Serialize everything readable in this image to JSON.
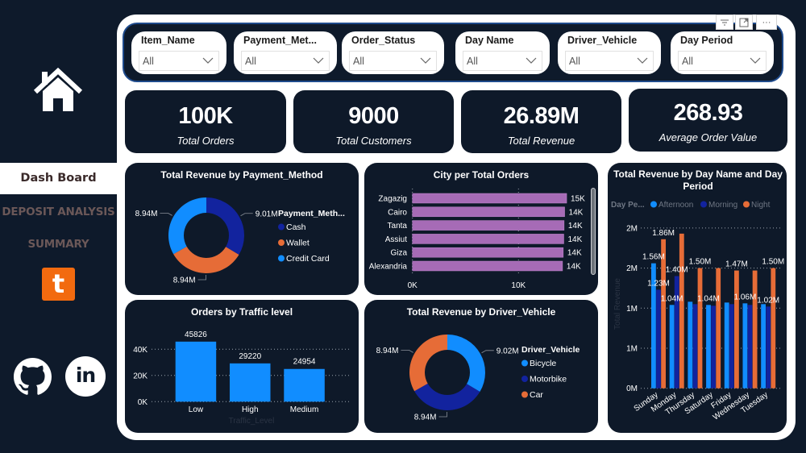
{
  "sidebar": {
    "nav": [
      {
        "label": "Dash Board",
        "active": true
      },
      {
        "label": "DEPOSIT ANALYSIS",
        "active": false
      },
      {
        "label": "SUMMARY",
        "active": false
      }
    ],
    "tumblr_glyph": "t",
    "linkedin_glyph": "in"
  },
  "visual_header": {
    "filter_glyph": "☰",
    "focus_glyph": "⤢",
    "more_glyph": "···"
  },
  "filters": [
    {
      "title": "Item_Name",
      "value": "All"
    },
    {
      "title": "Payment_Met...",
      "value": "All"
    },
    {
      "title": "Order_Status",
      "value": "All"
    },
    {
      "title": "Day Name",
      "value": "All"
    },
    {
      "title": "Driver_Vehicle",
      "value": "All"
    },
    {
      "title": "Day Period",
      "value": "All"
    }
  ],
  "kpis": [
    {
      "value": "100K",
      "label": "Total Orders"
    },
    {
      "value": "9000",
      "label": "Total Customers"
    },
    {
      "value": "26.89M",
      "label": "Total Revenue"
    },
    {
      "value": "268.93",
      "label": "Average Order Value"
    }
  ],
  "colors": {
    "background": "#0E1A2B",
    "panel": "#FFFFFF",
    "light_blue": "#118DFF",
    "dark_blue": "#12239E",
    "orange": "#E66C37",
    "purple": "#A66BB6",
    "tumblr": "#F26A0F"
  },
  "chart_data": [
    {
      "type": "pie",
      "variant": "donut",
      "title": "Total Revenue by Payment_Method",
      "legend_title": "Payment_Meth...",
      "legend_position": "right",
      "labels": [
        "Cash",
        "Wallet",
        "Credit Card"
      ],
      "values": [
        9.01,
        8.94,
        8.94
      ],
      "unit": "M",
      "data_labels": [
        "9.01M",
        "8.94M",
        "8.94M"
      ],
      "colors": [
        "#12239E",
        "#E66C37",
        "#118DFF"
      ]
    },
    {
      "type": "bar",
      "orientation": "horizontal",
      "title": "City per Total Orders",
      "categories": [
        "Zagazig",
        "Cairo",
        "Tanta",
        "Assiut",
        "Giza",
        "Alexandria"
      ],
      "values": [
        14540,
        14350,
        14300,
        14270,
        14220,
        14150
      ],
      "data_labels": [
        "15K",
        "14K",
        "14K",
        "14K",
        "14K",
        "14K"
      ],
      "xticks": [
        0,
        10000
      ],
      "xtick_labels": [
        "0K",
        "10K"
      ],
      "xlim": [
        0,
        15000
      ],
      "color": "#A66BB6",
      "grid": true,
      "scrollable": true
    },
    {
      "type": "bar",
      "variant": "grouped",
      "title": "Total Revenue by Day Name and Day Period",
      "xlabel": "",
      "ylabel": "Total Revenue",
      "legend_title": "Day Pe...",
      "legend_position": "top-left",
      "categories": [
        "Sunday",
        "Monday",
        "Thursday",
        "Saturday",
        "Friday",
        "Wednesday",
        "Tuesday"
      ],
      "series": [
        {
          "name": "Afternoon",
          "color": "#118DFF",
          "values": [
            1.56,
            1.04,
            1.08,
            1.04,
            1.07,
            1.06,
            1.05
          ],
          "labels": [
            "1.56M",
            "1.04M",
            null,
            "1.04M",
            null,
            "1.06M",
            null
          ]
        },
        {
          "name": "Morning",
          "color": "#12239E",
          "values": [
            1.23,
            1.4,
            1.05,
            1.03,
            1.05,
            1.04,
            1.02
          ],
          "labels": [
            "1.23M",
            "1.40M",
            null,
            null,
            null,
            null,
            "1.02M"
          ]
        },
        {
          "name": "Night",
          "color": "#E66C37",
          "values": [
            1.86,
            1.93,
            1.5,
            1.5,
            1.47,
            1.47,
            1.5
          ],
          "labels": [
            "1.86M",
            null,
            "1.50M",
            null,
            "1.47M",
            null,
            "1.50M"
          ]
        }
      ],
      "yticks": [
        0,
        0.5,
        1,
        1.5,
        2
      ],
      "ytick_labels": [
        "0M",
        "1M",
        "1M",
        "2M",
        "2M"
      ],
      "ylim": [
        0,
        2
      ],
      "unit": "M",
      "grid": true
    },
    {
      "type": "bar",
      "title": "Orders by Traffic level",
      "xlabel": "Traffic_Level",
      "ylabel": "",
      "categories": [
        "Low",
        "High",
        "Medium"
      ],
      "values": [
        45826,
        29220,
        24954
      ],
      "data_labels": [
        "45826",
        "29220",
        "24954"
      ],
      "yticks": [
        0,
        20000,
        40000
      ],
      "ytick_labels": [
        "0K",
        "20K",
        "40K"
      ],
      "ylim": [
        0,
        46000
      ],
      "color": "#118DFF",
      "grid": true
    },
    {
      "type": "pie",
      "variant": "donut",
      "title": "Total Revenue by Driver_Vehicle",
      "legend_title": "Driver_Vehicle",
      "legend_position": "right",
      "labels": [
        "Bicycle",
        "Motorbike",
        "Car"
      ],
      "values": [
        9.02,
        8.94,
        8.94
      ],
      "unit": "M",
      "data_labels": [
        "9.02M",
        "8.94M",
        "8.94M"
      ],
      "colors": [
        "#118DFF",
        "#12239E",
        "#E66C37"
      ]
    }
  ]
}
